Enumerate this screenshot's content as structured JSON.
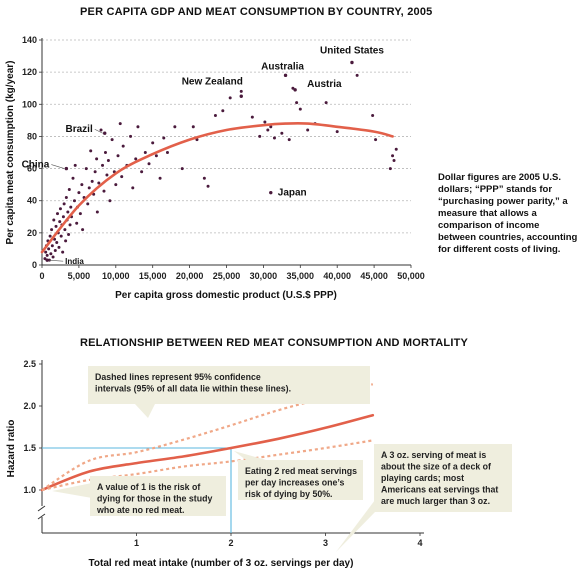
{
  "chart_data": [
    {
      "type": "scatter",
      "title": "PER CAPITA GDP AND MEAT CONSUMPTION BY COUNTRY, 2005",
      "xlabel": "Per capita gross domestic product (U.S.$ PPP)",
      "ylabel": "Per capita meat consumption (kg/year)",
      "xlim": [
        0,
        50000
      ],
      "ylim": [
        0,
        140
      ],
      "xticks": [
        0,
        5000,
        10000,
        15000,
        20000,
        25000,
        30000,
        35000,
        40000,
        45000,
        50000
      ],
      "xtick_labels": [
        "0",
        "5,000",
        "10,000",
        "15,000",
        "20,000",
        "25,000",
        "30,000",
        "35,000",
        "40,000",
        "45,000",
        "50,000"
      ],
      "yticks": [
        0,
        20,
        40,
        60,
        80,
        100,
        120,
        140
      ],
      "grid": "horizontal dashed",
      "point_color": "#4a1a3c",
      "curve_color": "#e2604a",
      "trend_curve": [
        [
          0,
          8
        ],
        [
          5000,
          37
        ],
        [
          10000,
          57
        ],
        [
          15000,
          69
        ],
        [
          20000,
          78
        ],
        [
          25000,
          84
        ],
        [
          30000,
          87
        ],
        [
          33000,
          88
        ],
        [
          36000,
          88
        ],
        [
          40000,
          86
        ],
        [
          45000,
          83
        ],
        [
          47500,
          80
        ]
      ],
      "points": [
        [
          400,
          4
        ],
        [
          500,
          8
        ],
        [
          600,
          12
        ],
        [
          700,
          6
        ],
        [
          800,
          15
        ],
        [
          900,
          10
        ],
        [
          1000,
          3
        ],
        [
          1100,
          18
        ],
        [
          1200,
          7
        ],
        [
          1300,
          22
        ],
        [
          1400,
          12
        ],
        [
          1500,
          5
        ],
        [
          1600,
          28
        ],
        [
          1700,
          16
        ],
        [
          1800,
          9
        ],
        [
          1900,
          24
        ],
        [
          2000,
          14
        ],
        [
          2100,
          32
        ],
        [
          2200,
          20
        ],
        [
          2300,
          11
        ],
        [
          2400,
          27
        ],
        [
          2500,
          35
        ],
        [
          2600,
          18
        ],
        [
          2700,
          25
        ],
        [
          2800,
          8
        ],
        [
          2900,
          30
        ],
        [
          3000,
          38
        ],
        [
          3100,
          22
        ],
        [
          3200,
          15
        ],
        [
          3300,
          42
        ],
        [
          3400,
          28
        ],
        [
          3500,
          33
        ],
        [
          3600,
          19
        ],
        [
          3700,
          47
        ],
        [
          3800,
          25
        ],
        [
          3900,
          36
        ],
        [
          4000,
          30
        ],
        [
          4200,
          54
        ],
        [
          4400,
          40
        ],
        [
          4500,
          62
        ],
        [
          4700,
          26
        ],
        [
          4800,
          36
        ],
        [
          5000,
          45
        ],
        [
          5200,
          32
        ],
        [
          5400,
          50
        ],
        [
          5500,
          22
        ],
        [
          5700,
          42
        ],
        [
          6000,
          60
        ],
        [
          6200,
          38
        ],
        [
          6400,
          48
        ],
        [
          6600,
          71
        ],
        [
          6800,
          52
        ],
        [
          7000,
          44
        ],
        [
          7200,
          58
        ],
        [
          7400,
          66
        ],
        [
          7500,
          33
        ],
        [
          7700,
          51
        ],
        [
          8000,
          84
        ],
        [
          8200,
          62
        ],
        [
          8400,
          46
        ],
        [
          8600,
          70
        ],
        [
          8800,
          56
        ],
        [
          9000,
          65
        ],
        [
          9200,
          40
        ],
        [
          9500,
          78
        ],
        [
          9800,
          58
        ],
        [
          10000,
          50
        ],
        [
          10300,
          68
        ],
        [
          10600,
          88
        ],
        [
          10800,
          55
        ],
        [
          11000,
          74
        ],
        [
          11500,
          62
        ],
        [
          12000,
          80
        ],
        [
          12300,
          48
        ],
        [
          12700,
          66
        ],
        [
          13000,
          86
        ],
        [
          13500,
          58
        ],
        [
          14000,
          70
        ],
        [
          14500,
          63
        ],
        [
          15000,
          76
        ],
        [
          15500,
          68
        ],
        [
          16000,
          54
        ],
        [
          16500,
          79
        ],
        [
          17000,
          70
        ],
        [
          18000,
          86
        ],
        [
          19000,
          60
        ],
        [
          20500,
          86
        ],
        [
          21000,
          78
        ],
        [
          22000,
          54
        ],
        [
          22500,
          49
        ],
        [
          23500,
          93
        ],
        [
          24500,
          96
        ],
        [
          25500,
          104
        ],
        [
          27000,
          108
        ],
        [
          28500,
          92
        ],
        [
          29500,
          80
        ],
        [
          30200,
          89
        ],
        [
          30600,
          84
        ],
        [
          31000,
          86
        ],
        [
          31500,
          79
        ],
        [
          32500,
          82
        ],
        [
          33500,
          78
        ],
        [
          34000,
          110
        ],
        [
          34500,
          101
        ],
        [
          35000,
          97
        ],
        [
          36000,
          84
        ],
        [
          37000,
          88
        ],
        [
          38500,
          101
        ],
        [
          40000,
          83
        ],
        [
          42000,
          126
        ],
        [
          42700,
          118
        ],
        [
          44800,
          93
        ],
        [
          45200,
          78
        ],
        [
          47200,
          60
        ],
        [
          47500,
          68
        ],
        [
          47700,
          65
        ],
        [
          48000,
          72
        ]
      ],
      "labeled_points": [
        {
          "label": "United States",
          "x": 42000,
          "y": 126
        },
        {
          "label": "Australia",
          "x": 33000,
          "y": 118
        },
        {
          "label": "Austria",
          "x": 34300,
          "y": 109
        },
        {
          "label": "New Zealand",
          "x": 27000,
          "y": 105
        },
        {
          "label": "Brazil",
          "x": 8500,
          "y": 82
        },
        {
          "label": "China",
          "x": 3300,
          "y": 60
        },
        {
          "label": "Japan",
          "x": 31000,
          "y": 45
        },
        {
          "label": "India",
          "x": 700,
          "y": 3
        }
      ]
    },
    {
      "type": "line",
      "title": "RELATIONSHIP BETWEEN RED MEAT CONSUMPTION AND MORTALITY",
      "xlabel": "Total red meat intake (number of 3 oz. servings per day)",
      "ylabel": "Hazard ratio",
      "xlim": [
        0,
        4
      ],
      "ylim": [
        1.0,
        2.5
      ],
      "xticks": [
        1,
        2,
        3,
        4
      ],
      "yticks": [
        1.0,
        1.5,
        2.0,
        2.5
      ],
      "ytick_labels": [
        "1.0",
        "1.5",
        "2.0",
        "2.5"
      ],
      "axis_break": true,
      "series": [
        {
          "role": "estimate",
          "style": "solid",
          "color": "#e2604a",
          "x": [
            0,
            0.5,
            1,
            1.5,
            2,
            2.5,
            3,
            3.5
          ],
          "y": [
            1.0,
            1.22,
            1.32,
            1.4,
            1.5,
            1.61,
            1.74,
            1.89
          ]
        },
        {
          "role": "upper 95% CI",
          "style": "dashed",
          "color": "#f0a888",
          "x": [
            0,
            0.5,
            1,
            1.5,
            2,
            2.5,
            3,
            3.5
          ],
          "y": [
            1.0,
            1.35,
            1.45,
            1.6,
            1.77,
            1.95,
            2.1,
            2.26
          ]
        },
        {
          "role": "lower 95% CI",
          "style": "dashed",
          "color": "#f0a888",
          "x": [
            0,
            0.5,
            1,
            1.5,
            2,
            2.5,
            3,
            3.5
          ],
          "y": [
            1.0,
            1.12,
            1.19,
            1.28,
            1.34,
            1.42,
            1.5,
            1.59
          ]
        }
      ],
      "reference": {
        "x": 2,
        "y": 1.5,
        "color": "#5bb7df"
      },
      "callouts": [
        {
          "id": "ci",
          "lines": [
            "Dashed lines represent 95% confidence",
            "intervals (95% of all data lie within these lines)."
          ],
          "anchor_x": 0.55,
          "anchor_y": 1.45
        },
        {
          "id": "baseline",
          "lines": [
            "A value of 1 is the risk of",
            "dying for those in the study",
            "who ate no red meat."
          ],
          "anchor_x": 0.05,
          "anchor_y": 1.0
        },
        {
          "id": "two",
          "lines": [
            "Eating 2 red meat servings",
            "per day increases one’s",
            "risk of dying by 50%."
          ],
          "anchor_x": 2.0,
          "anchor_y": 1.5
        },
        {
          "id": "serving",
          "lines": [
            "A 3 oz. serving of meat is",
            "about the size of a deck of",
            "playing cards; most",
            "Americans eat servings that",
            "are much larger than 3 oz."
          ],
          "anchor_x": 3.2,
          "anchor_y": 1.0
        }
      ]
    }
  ],
  "side_note": "Dollar figures are 2005 U.S.\ndollars; “PPP” stands for\n“purchasing power parity,” a\nmeasure that allows a\ncomparison of income\nbetween countries, accounting\nfor different costs of living."
}
